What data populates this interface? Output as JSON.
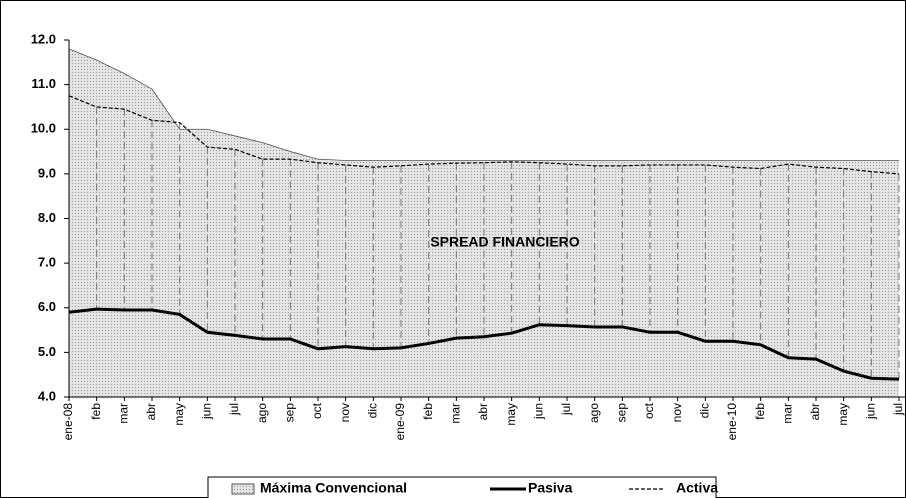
{
  "chart_data": {
    "type": "line",
    "annotation": "SPREAD FINANCIERO",
    "categories": [
      "ene-08",
      "feb",
      "mar",
      "abr",
      "may",
      "jun",
      "jul",
      "ago",
      "sep",
      "oct",
      "nov",
      "dic",
      "ene-09",
      "feb",
      "mar",
      "abr",
      "may",
      "jun",
      "jul",
      "ago",
      "sep",
      "oct",
      "nov",
      "dic",
      "ene-10",
      "feb",
      "mar",
      "abr",
      "may",
      "jun",
      "jul"
    ],
    "series": [
      {
        "name": "Máxima Convencional",
        "color": "#c8c8c8",
        "style": "area",
        "values": [
          11.8,
          11.55,
          11.25,
          10.9,
          10.0,
          10.0,
          9.85,
          9.7,
          9.5,
          9.33,
          9.3,
          9.3,
          9.3,
          9.3,
          9.3,
          9.3,
          9.3,
          9.3,
          9.3,
          9.3,
          9.3,
          9.3,
          9.3,
          9.3,
          9.3,
          9.3,
          9.3,
          9.3,
          9.3,
          9.3,
          9.3
        ]
      },
      {
        "name": "Pasiva",
        "color": "#000000",
        "style": "solid",
        "values": [
          5.9,
          5.97,
          5.95,
          5.95,
          5.85,
          5.45,
          5.38,
          5.3,
          5.3,
          5.08,
          5.13,
          5.08,
          5.1,
          5.2,
          5.32,
          5.35,
          5.43,
          5.62,
          5.6,
          5.57,
          5.57,
          5.45,
          5.45,
          5.25,
          5.25,
          5.17,
          4.88,
          4.85,
          4.58,
          4.42,
          4.4
        ]
      },
      {
        "name": "Activa",
        "color": "#000000",
        "style": "dashed",
        "values": [
          10.75,
          10.5,
          10.45,
          10.2,
          10.15,
          9.6,
          9.55,
          9.33,
          9.33,
          9.25,
          9.2,
          9.15,
          9.18,
          9.22,
          9.24,
          9.25,
          9.27,
          9.25,
          9.22,
          9.18,
          9.18,
          9.2,
          9.2,
          9.2,
          9.15,
          9.12,
          9.22,
          9.15,
          9.12,
          9.05,
          9.0
        ]
      }
    ],
    "ylim": [
      4,
      12
    ],
    "yticks": [
      {
        "value": 4,
        "label": "4.0"
      },
      {
        "value": 5,
        "label": "5.0"
      },
      {
        "value": 6,
        "label": "6.0"
      },
      {
        "value": 7,
        "label": "7.0"
      },
      {
        "value": 8,
        "label": "8.0"
      },
      {
        "value": 9,
        "label": "9.0"
      },
      {
        "value": 10,
        "label": "10.0"
      },
      {
        "value": 11,
        "label": "11.0"
      },
      {
        "value": 12,
        "label": "12.0"
      }
    ],
    "grid": false,
    "legend": "bottom"
  }
}
